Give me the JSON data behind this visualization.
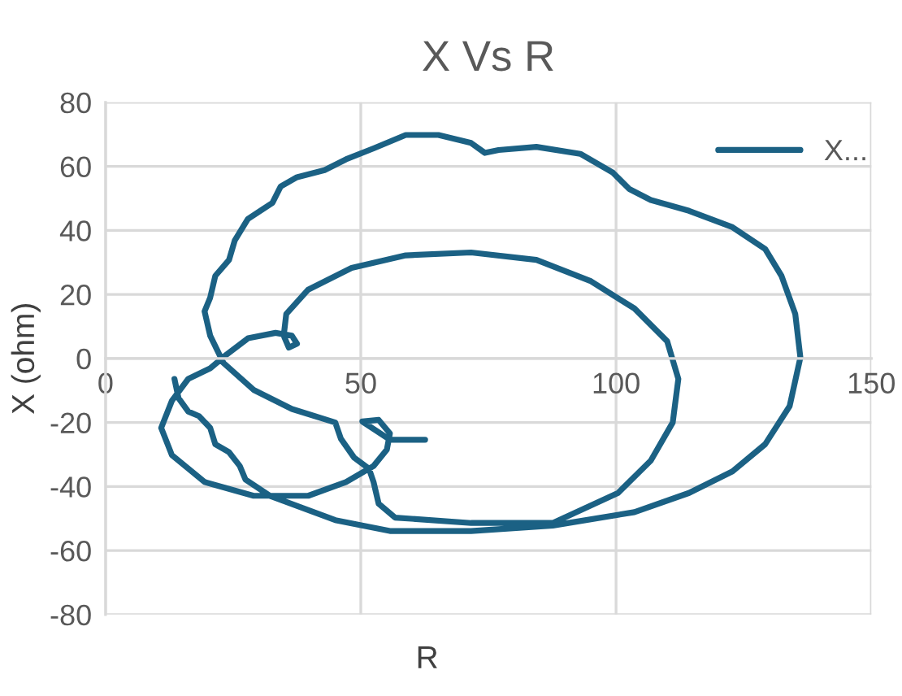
{
  "chart_data": {
    "type": "line",
    "title": "X Vs R",
    "xlabel": "R",
    "ylabel": "X (ohm)",
    "xlim": [
      0,
      150
    ],
    "xticks": [
      0,
      50,
      100,
      150
    ],
    "ylim": [
      -80,
      80
    ],
    "yticks": [
      -80,
      -60,
      -40,
      -20,
      0,
      20,
      40,
      60,
      80
    ],
    "grid": true,
    "legend": "top right",
    "marker": "none",
    "line_style": "solid",
    "series": [
      {
        "name": "X...",
        "color": "#1b6184",
        "x": [
          13.5,
          14.3,
          16.2,
          18.3,
          20.5,
          21.5,
          24.2,
          26.3,
          27.4,
          32.2,
          45.0,
          55.7,
          71.6,
          87.6,
          103.6,
          114.3,
          122.8,
          129.2,
          134.0,
          136.1,
          135.1,
          132.4,
          129.2,
          122.8,
          114.3,
          106.8,
          102.6,
          99.4,
          93.0,
          84.4,
          77.0,
          74.3,
          71.6,
          65.2,
          58.8,
          52.5,
          47.1,
          42.9,
          37.5,
          34.3,
          32.7,
          27.9,
          25.3,
          24.2,
          21.5,
          20.5,
          19.4,
          20.5,
          23.1,
          29.0,
          36.5,
          45.0,
          46.1,
          48.7,
          51.6,
          52.5,
          53.5,
          56.7,
          71.6,
          87.6,
          100.4,
          106.8,
          111.1,
          112.2,
          110.0,
          103.6,
          95.1,
          84.4,
          71.6,
          58.8,
          48.2,
          39.7,
          35.4,
          34.9,
          35.9,
          37.5,
          36.5,
          33.3,
          27.9,
          23.7,
          20.5,
          16.2,
          13.0,
          10.9,
          13.0,
          19.4,
          29.0,
          39.7,
          47.1,
          52.5,
          55.1,
          55.7,
          53.5,
          50.3,
          55.7,
          62.6
        ],
        "values": [
          -6.4,
          -12.4,
          -16.6,
          -18.0,
          -21.7,
          -26.8,
          -29.3,
          -33.6,
          -37.8,
          -42.9,
          -50.5,
          -53.9,
          -53.9,
          -52.2,
          -48.0,
          -42.0,
          -35.3,
          -26.8,
          -14.9,
          0.3,
          13.9,
          25.8,
          34.2,
          41.0,
          46.1,
          49.5,
          52.9,
          58.0,
          63.9,
          66.1,
          65.1,
          64.2,
          67.3,
          69.8,
          69.8,
          65.6,
          62.2,
          58.8,
          56.6,
          53.7,
          48.6,
          43.6,
          36.8,
          30.8,
          25.8,
          19.0,
          14.7,
          7.1,
          -1.4,
          -9.8,
          -15.8,
          -20.0,
          -25.1,
          -31.0,
          -34.4,
          -38.6,
          -45.4,
          -49.7,
          -51.4,
          -51.4,
          -42.0,
          -31.9,
          -20.0,
          -6.4,
          5.4,
          15.6,
          24.1,
          30.8,
          33.1,
          32.2,
          28.3,
          21.5,
          13.9,
          7.1,
          3.4,
          4.6,
          7.1,
          8.0,
          6.3,
          1.2,
          -3.1,
          -6.4,
          -13.2,
          -21.7,
          -30.2,
          -38.6,
          -42.9,
          -42.9,
          -38.6,
          -33.6,
          -28.5,
          -23.4,
          -19.2,
          -19.7,
          -25.4,
          -25.4
        ]
      }
    ]
  }
}
